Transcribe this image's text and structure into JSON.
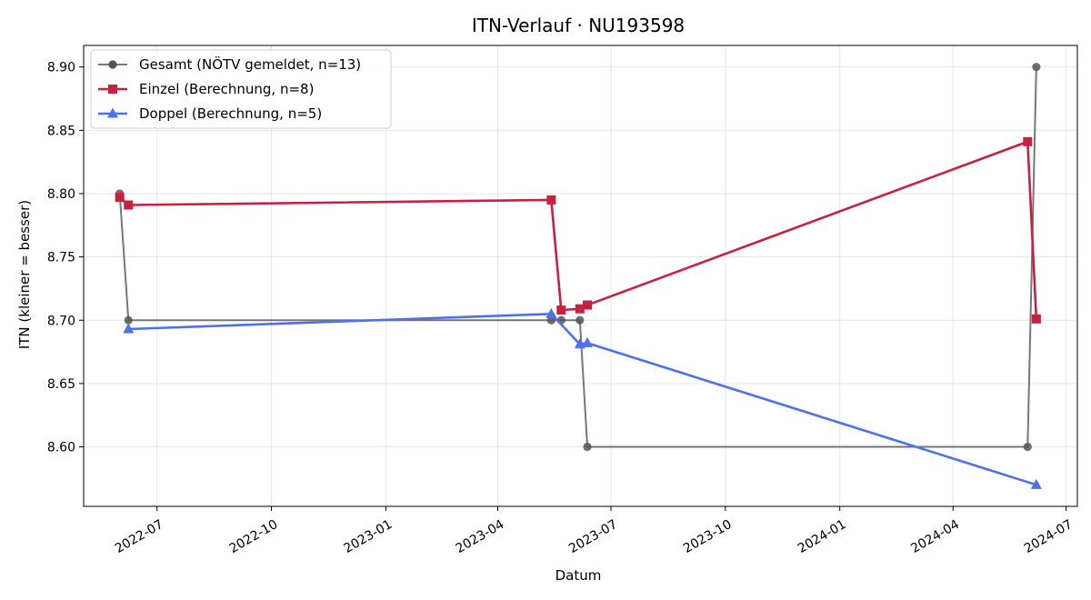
{
  "chart_data": {
    "type": "line",
    "title": "ITN-Verlauf · NU193598",
    "xlabel": "Datum",
    "ylabel": "ITN  (kleiner = besser)",
    "x_axis_type": "date",
    "xlim": [
      "2022-05-03",
      "2024-07-10"
    ],
    "ylim": [
      8.553,
      8.917
    ],
    "x_ticks": [
      "2022-07",
      "2022-10",
      "2023-01",
      "2023-04",
      "2023-07",
      "2023-10",
      "2024-01",
      "2024-04",
      "2024-07"
    ],
    "y_ticks": [
      8.6,
      8.65,
      8.7,
      8.75,
      8.8,
      8.85,
      8.9
    ],
    "y_tick_labels": [
      "8.60",
      "8.65",
      "8.70",
      "8.75",
      "8.80",
      "8.85",
      "8.90"
    ],
    "grid": true,
    "legend_position": "top-left",
    "series": [
      {
        "name": "Gesamt (NÖTV gemeldet, n=13)",
        "color": "#555555",
        "marker": "circle",
        "points": [
          {
            "x": "2022-06-01",
            "y": 8.8
          },
          {
            "x": "2022-06-08",
            "y": 8.7
          },
          {
            "x": "2023-05-14",
            "y": 8.7
          },
          {
            "x": "2023-05-22",
            "y": 8.7
          },
          {
            "x": "2023-06-06",
            "y": 8.7
          },
          {
            "x": "2023-06-12",
            "y": 8.6
          },
          {
            "x": "2024-05-31",
            "y": 8.6
          },
          {
            "x": "2024-06-07",
            "y": 8.9
          }
        ]
      },
      {
        "name": "Einzel (Berechnung, n=8)",
        "color": "#c8203f",
        "marker": "square",
        "points": [
          {
            "x": "2022-06-01",
            "y": 8.797
          },
          {
            "x": "2022-06-08",
            "y": 8.791
          },
          {
            "x": "2023-05-14",
            "y": 8.795
          },
          {
            "x": "2023-05-22",
            "y": 8.708
          },
          {
            "x": "2023-06-06",
            "y": 8.709
          },
          {
            "x": "2023-06-12",
            "y": 8.712
          },
          {
            "x": "2024-05-31",
            "y": 8.841
          },
          {
            "x": "2024-06-07",
            "y": 8.701
          }
        ]
      },
      {
        "name": "Doppel (Berechnung, n=5)",
        "color": "#4f6fec",
        "marker": "triangle",
        "points": [
          {
            "x": "2022-06-08",
            "y": 8.693
          },
          {
            "x": "2023-05-14",
            "y": 8.705
          },
          {
            "x": "2023-06-06",
            "y": 8.681
          },
          {
            "x": "2023-06-12",
            "y": 8.682
          },
          {
            "x": "2024-06-07",
            "y": 8.57
          }
        ]
      }
    ]
  }
}
